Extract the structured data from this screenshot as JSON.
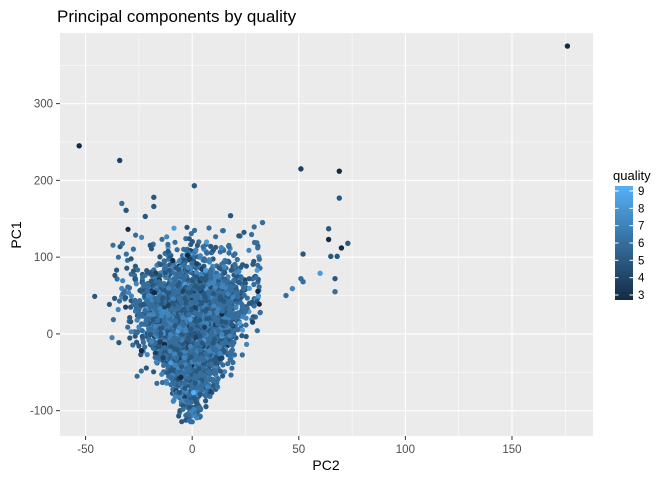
{
  "chart_data": {
    "type": "scatter",
    "title": "Principal components by quality",
    "xlabel": "PC2",
    "ylabel": "PC1",
    "xlim": [
      -62,
      188
    ],
    "ylim": [
      -133,
      392
    ],
    "x_ticks": [
      -50,
      0,
      50,
      100,
      150
    ],
    "y_ticks": [
      -100,
      0,
      100,
      200,
      300
    ],
    "grid": true,
    "panel_background": "#EBEBEB",
    "legend": {
      "title": "quality",
      "position": "right",
      "type": "colorbar",
      "range": [
        3,
        9
      ],
      "ticks": [
        3,
        4,
        5,
        6,
        7,
        8,
        9
      ],
      "low_color": "#132B43",
      "high_color": "#56B1F7"
    },
    "cluster": {
      "description_only": false,
      "approx_points": 4898,
      "x_range": [
        -48,
        32
      ],
      "y_range": [
        -115,
        140
      ]
    },
    "points": [
      {
        "x": -53,
        "y": 245,
        "quality": 3
      },
      {
        "x": -34,
        "y": 226,
        "quality": 4
      },
      {
        "x": 1,
        "y": 193,
        "quality": 5
      },
      {
        "x": -18,
        "y": 178,
        "quality": 5
      },
      {
        "x": -33,
        "y": 170,
        "quality": 6
      },
      {
        "x": -18,
        "y": 166,
        "quality": 5
      },
      {
        "x": -31,
        "y": 161,
        "quality": 5
      },
      {
        "x": -22,
        "y": 153,
        "quality": 5
      },
      {
        "x": 18,
        "y": 154,
        "quality": 5
      },
      {
        "x": 33,
        "y": 145,
        "quality": 6
      },
      {
        "x": 51,
        "y": 215,
        "quality": 4
      },
      {
        "x": 69,
        "y": 212,
        "quality": 3
      },
      {
        "x": 69,
        "y": 177,
        "quality": 5
      },
      {
        "x": 64,
        "y": 137,
        "quality": 5
      },
      {
        "x": 64,
        "y": 123,
        "quality": 3
      },
      {
        "x": 73,
        "y": 118,
        "quality": 5
      },
      {
        "x": 70,
        "y": 112,
        "quality": 3
      },
      {
        "x": 52,
        "y": 104,
        "quality": 5
      },
      {
        "x": 65,
        "y": 101,
        "quality": 5
      },
      {
        "x": 68,
        "y": 101,
        "quality": 5
      },
      {
        "x": 60,
        "y": 79,
        "quality": 8
      },
      {
        "x": 51,
        "y": 72,
        "quality": 6
      },
      {
        "x": 52,
        "y": 68,
        "quality": 6
      },
      {
        "x": 67,
        "y": 72,
        "quality": 5
      },
      {
        "x": 67,
        "y": 55,
        "quality": 6
      },
      {
        "x": 47,
        "y": 59,
        "quality": 7
      },
      {
        "x": 44,
        "y": 50,
        "quality": 6
      },
      {
        "x": 176,
        "y": 375,
        "quality": 3
      }
    ]
  }
}
